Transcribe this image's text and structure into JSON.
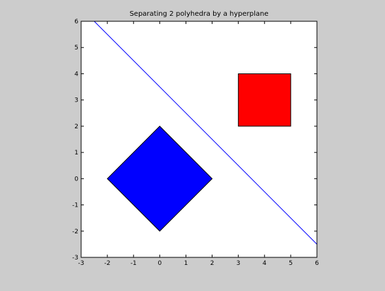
{
  "chart_data": {
    "type": "scatter",
    "title": "Separating 2 polyhedra by a hyperplane",
    "xlabel": "",
    "ylabel": "",
    "xlim": [
      -3,
      6
    ],
    "ylim": [
      -3,
      6
    ],
    "x_ticks": [
      -3,
      -2,
      -1,
      0,
      1,
      2,
      3,
      4,
      5,
      6
    ],
    "y_ticks": [
      -3,
      -2,
      -1,
      0,
      1,
      2,
      3,
      4,
      5,
      6
    ],
    "grid": false,
    "legend": "none",
    "polygons": [
      {
        "shape": "diamond",
        "fill": "#0000ff",
        "stroke": "#000000",
        "points": [
          [
            0,
            2
          ],
          [
            2,
            0
          ],
          [
            0,
            -2
          ],
          [
            -2,
            0
          ]
        ]
      },
      {
        "shape": "square",
        "fill": "#ff0000",
        "stroke": "#000000",
        "points": [
          [
            3,
            2
          ],
          [
            5,
            2
          ],
          [
            5,
            4
          ],
          [
            3,
            4
          ]
        ]
      }
    ],
    "hyperplane": {
      "color": "#0000ff",
      "x": [
        -2.5,
        6
      ],
      "y": [
        6,
        -2.5
      ]
    }
  },
  "colors": {
    "figure_background": "#cccccc",
    "axes_background": "#ffffff",
    "axes_edge": "#000000"
  }
}
